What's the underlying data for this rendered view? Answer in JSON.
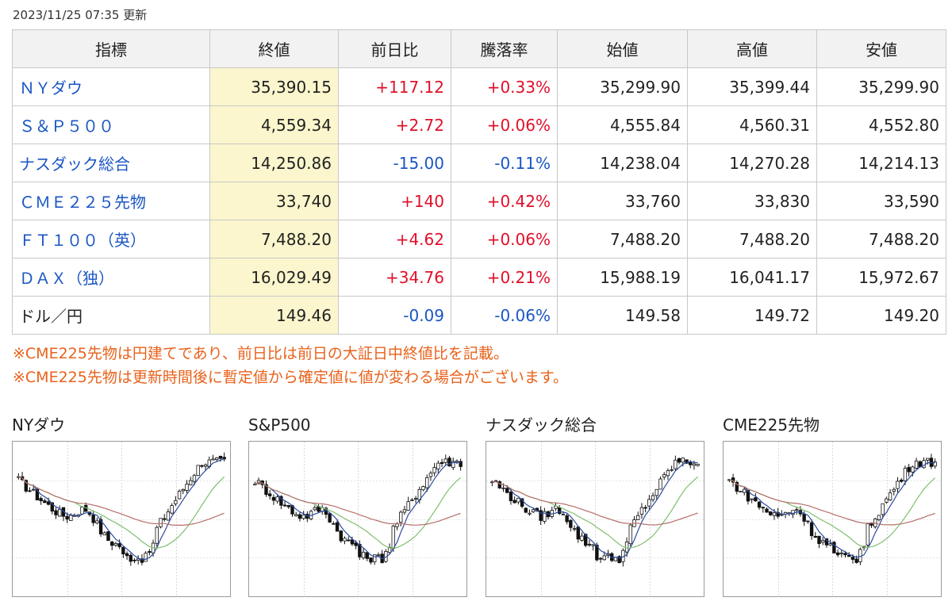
{
  "update_time": "2023/11/25 07:35 更新",
  "table": {
    "headers": [
      "指標",
      "終値",
      "前日比",
      "騰落率",
      "始値",
      "高値",
      "安値"
    ],
    "rows": [
      {
        "name": "ＮＹダウ",
        "link": true,
        "close": "35,390.15",
        "change": "+117.12",
        "rate": "+0.33%",
        "open": "35,299.90",
        "high": "35,399.44",
        "low": "35,299.90",
        "dir": "pos"
      },
      {
        "name": "Ｓ＆Ｐ５００",
        "link": true,
        "close": "4,559.34",
        "change": "+2.72",
        "rate": "+0.06%",
        "open": "4,555.84",
        "high": "4,560.31",
        "low": "4,552.80",
        "dir": "pos"
      },
      {
        "name": "ナスダック総合",
        "link": true,
        "close": "14,250.86",
        "change": "-15.00",
        "rate": "-0.11%",
        "open": "14,238.04",
        "high": "14,270.28",
        "low": "14,214.13",
        "dir": "neg"
      },
      {
        "name": "ＣＭＥ２２５先物",
        "link": true,
        "close": "33,740",
        "change": "+140",
        "rate": "+0.42%",
        "open": "33,760",
        "high": "33,830",
        "low": "33,590",
        "dir": "pos"
      },
      {
        "name": "ＦＴ１００（英）",
        "link": true,
        "close": "7,488.20",
        "change": "+4.62",
        "rate": "+0.06%",
        "open": "7,488.20",
        "high": "7,488.20",
        "low": "7,488.20",
        "dir": "pos"
      },
      {
        "name": "ＤＡＸ（独）",
        "link": true,
        "close": "16,029.49",
        "change": "+34.76",
        "rate": "+0.21%",
        "open": "15,988.19",
        "high": "16,041.17",
        "low": "15,972.67",
        "dir": "pos"
      },
      {
        "name": "ドル／円",
        "link": false,
        "close": "149.46",
        "change": "-0.09",
        "rate": "-0.06%",
        "open": "149.58",
        "high": "149.72",
        "low": "149.20",
        "dir": "neg"
      }
    ]
  },
  "notes": [
    "※CME225先物は円建てであり、前日比は前日の大証日中終値比を記載。",
    "※CME225先物は更新時間後に暫定値から確定値に値が変わる場合がございます。"
  ],
  "charts": [
    {
      "title": "NYダウ"
    },
    {
      "title": "S&P500"
    },
    {
      "title": "ナスダック総合"
    },
    {
      "title": "CME225先物"
    }
  ],
  "colors": {
    "positive": "#e0102a",
    "negative": "#1a56c4",
    "link": "#1a56c4",
    "note": "#e8621b",
    "close_column_bg": "#fbf6cd",
    "ma_short": "#2b4a9e",
    "ma_mid": "#7fbf6e",
    "ma_long": "#b5706a"
  }
}
